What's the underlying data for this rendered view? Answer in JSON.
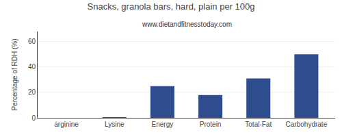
{
  "chart_data": {
    "type": "bar",
    "title": "Snacks, granola bars, hard, plain per 100g",
    "subtitle": "www.dietandfitnesstoday.com",
    "categories": [
      "arginine",
      "Lysine",
      "Energy",
      "Protein",
      "Total-Fat",
      "Carbohydrate"
    ],
    "values": [
      0,
      0.5,
      25,
      18,
      31,
      50
    ],
    "color": "#2e4d8e",
    "ylabel": "Percentage of RDH (%)",
    "ylim": [
      0,
      68
    ],
    "yticks": [
      0,
      20,
      40,
      60
    ],
    "grid": true
  }
}
